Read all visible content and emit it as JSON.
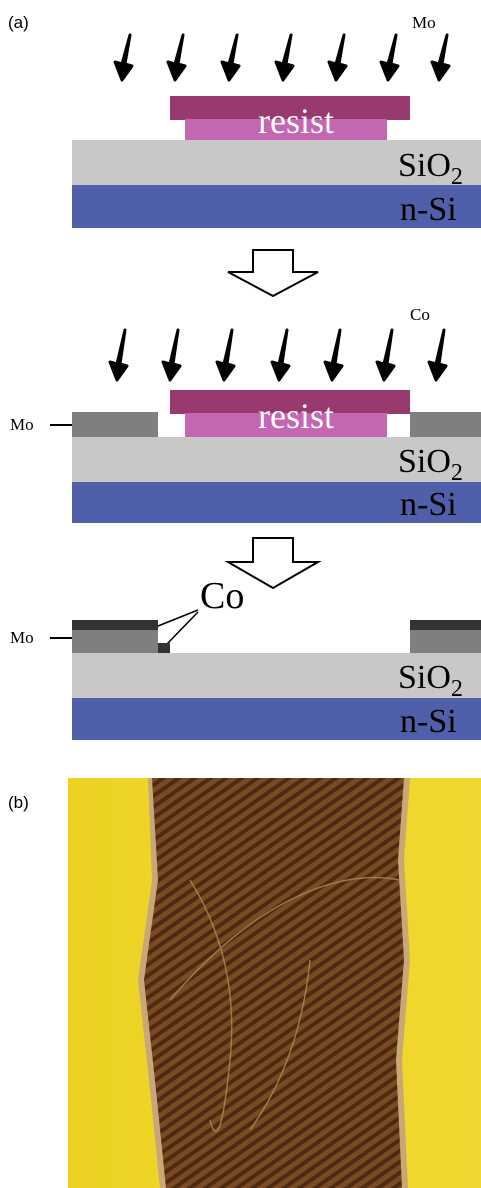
{
  "panel_a": {
    "label": "(a)",
    "step1": {
      "source": "Mo",
      "resist": "resist",
      "oxide": {
        "text": "SiO",
        "subscript": "2"
      },
      "substrate": "n-Si"
    },
    "step2": {
      "source": "Co",
      "side_label": "Mo",
      "resist": "resist",
      "oxide": {
        "text": "SiO",
        "subscript": "2"
      },
      "substrate": "n-Si"
    },
    "step3": {
      "deposit_label": "Co",
      "side_label": "Mo",
      "oxide": {
        "text": "SiO",
        "subscript": "2"
      },
      "substrate": "n-Si"
    }
  },
  "panel_b": {
    "label": "(b)"
  }
}
